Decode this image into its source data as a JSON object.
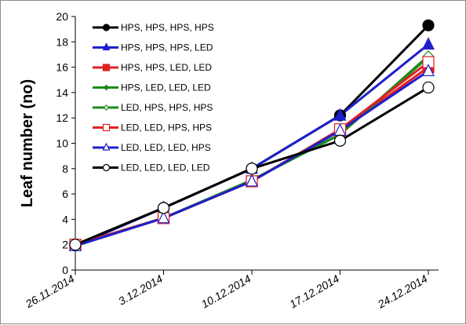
{
  "chart_data": {
    "type": "line",
    "title": "",
    "xlabel": "",
    "ylabel": "Leaf number (no)",
    "ylim": [
      0,
      20
    ],
    "yticks": [
      0,
      2,
      4,
      6,
      8,
      10,
      12,
      14,
      16,
      18,
      20
    ],
    "categories": [
      "26.11.2014",
      "3.12.2014",
      "10.12.2014",
      "17.12.2014",
      "24.12.2014"
    ],
    "legend_position": "top-left",
    "grid": false,
    "series": [
      {
        "name": "HPS, HPS, HPS, HPS",
        "color": "#000000",
        "marker": "filled-circle",
        "values": [
          2.0,
          4.9,
          8.0,
          12.2,
          19.3
        ]
      },
      {
        "name": "HPS, HPS, HPS, LED",
        "color": "#1f1fcc",
        "marker": "filled-triangle",
        "values": [
          1.9,
          4.9,
          8.0,
          12.2,
          17.8
        ]
      },
      {
        "name": "HPS, HPS, LED, LED",
        "color": "#e02020",
        "marker": "filled-square",
        "values": [
          2.0,
          4.1,
          7.0,
          11.0,
          16.0
        ]
      },
      {
        "name": "HPS, LED, LED, LED",
        "color": "#1a8c1a",
        "marker": "filled-diamond",
        "values": [
          2.0,
          4.1,
          7.1,
          10.7,
          16.8
        ]
      },
      {
        "name": "LED, HPS, HPS, HPS",
        "color": "#1a8c1a",
        "marker": "open-diamond",
        "values": [
          2.0,
          4.1,
          7.1,
          10.7,
          16.9
        ]
      },
      {
        "name": "LED, LED, HPS, HPS",
        "color": "#e02020",
        "marker": "open-square",
        "values": [
          2.0,
          4.1,
          7.0,
          11.1,
          16.4
        ]
      },
      {
        "name": "LED, LED, LED, HPS",
        "color": "#1f1fcc",
        "marker": "open-triangle",
        "values": [
          1.9,
          4.1,
          7.0,
          11.0,
          15.7
        ]
      },
      {
        "name": "LED, LED, LED, LED",
        "color": "#000000",
        "marker": "open-circle",
        "values": [
          2.0,
          4.9,
          8.0,
          10.2,
          14.4
        ]
      }
    ]
  }
}
